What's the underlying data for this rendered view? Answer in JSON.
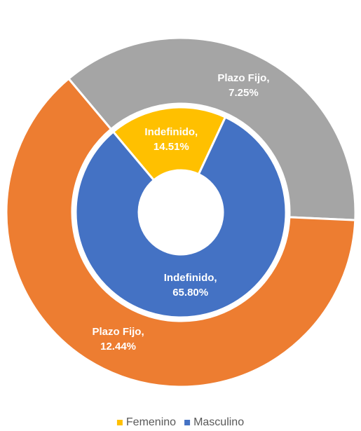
{
  "chart_data": {
    "type": "doughnut",
    "categories": [
      "Femenino",
      "Masculino"
    ],
    "legend": "bottom",
    "series": [
      {
        "point_labels": [
          "Indefinido,",
          "Indefinido,"
        ],
        "colors": [
          "#ffc000",
          "#4472c4"
        ],
        "values": [
          14.51,
          65.8
        ],
        "value_labels": [
          "14.51%",
          "65.80%"
        ]
      },
      {
        "point_labels": [
          "Plazo Fijo,",
          "Plazo Fijo,"
        ],
        "colors": [
          "#a5a5a5",
          "#ed7d31"
        ],
        "values": [
          7.25,
          12.44
        ],
        "value_labels": [
          "7.25%",
          "12.44%"
        ]
      }
    ]
  }
}
